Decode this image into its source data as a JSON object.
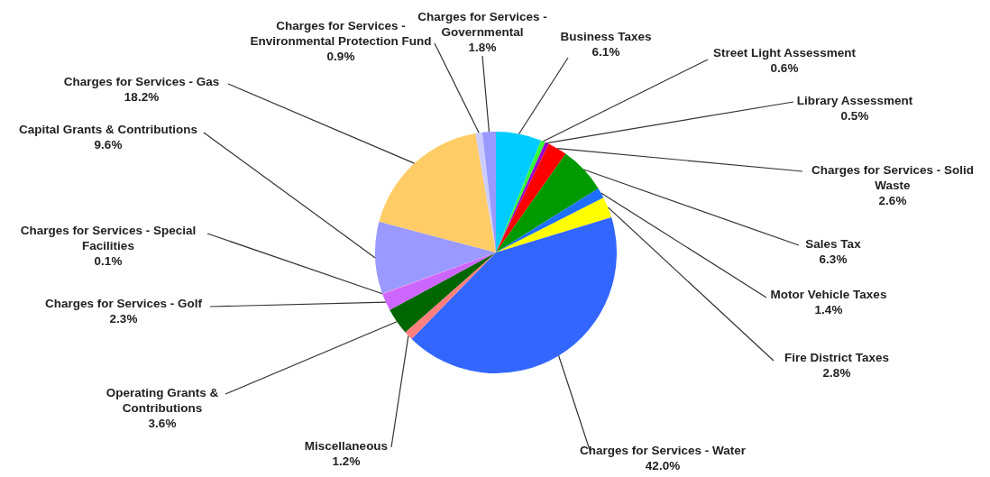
{
  "chart_data": {
    "type": "pie",
    "categories": [
      "Business Taxes",
      "Street Light Assessment",
      "Library Assessment",
      "Charges for Services - Solid Waste",
      "Sales Tax",
      "Motor Vehicle Taxes",
      "Fire District Taxes",
      "Charges for Services - Water",
      "Miscellaneous",
      "Operating Grants & Contributions",
      "Charges for Services - Golf",
      "Charges for Services - Special Facilities",
      "Capital Grants & Contributions",
      "Charges for Services - Gas",
      "Charges for Services - Environmental Protection Fund",
      "Charges for Services - Governmental"
    ],
    "values": [
      6.1,
      0.6,
      0.5,
      2.6,
      6.3,
      1.4,
      2.8,
      42.0,
      1.2,
      3.6,
      2.3,
      0.1,
      9.6,
      18.2,
      0.9,
      1.8
    ],
    "value_labels": [
      "6.1%",
      "0.6%",
      "0.5%",
      "2.6%",
      "6.3%",
      "1.4%",
      "2.8%",
      "42.0%",
      "1.2%",
      "3.6%",
      "2.3%",
      "0.1%",
      "9.6%",
      "18.2%",
      "0.9%",
      "1.8%"
    ],
    "colors": [
      "#00ccff",
      "#33ff33",
      "#9900cc",
      "#ff0000",
      "#009900",
      "#1f6fff",
      "#ffff00",
      "#3366ff",
      "#ff7f7f",
      "#006600",
      "#cc66ff",
      "#ff66cc",
      "#9999ff",
      "#ffcc66",
      "#ccccff",
      "#9999ff"
    ],
    "legend": false
  }
}
